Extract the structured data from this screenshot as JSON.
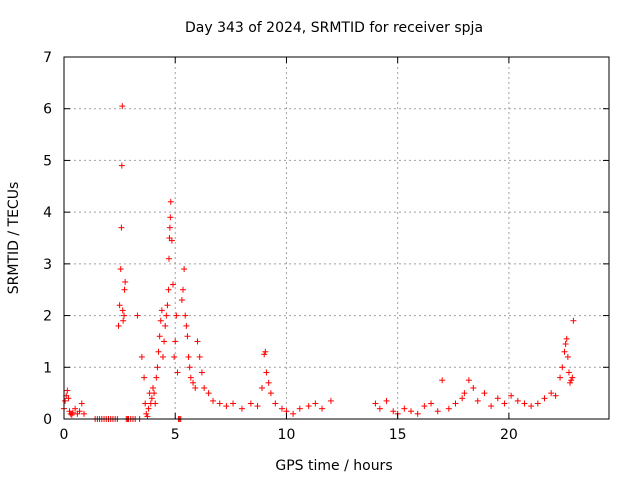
{
  "chart_data": {
    "type": "scatter",
    "title": "Day 343 of 2024, SRMTID for receiver spja",
    "xlabel": "GPS time / hours",
    "ylabel": "SRMTID / TECUs",
    "xlim": [
      0,
      24.5
    ],
    "ylim": [
      0,
      7
    ],
    "xticks": [
      0,
      5,
      10,
      15,
      20
    ],
    "yticks": [
      0,
      1,
      2,
      3,
      4,
      5,
      6,
      7
    ],
    "grid": true,
    "marker": "plus",
    "marker_color": "#ff0000",
    "series": [
      {
        "name": "SRMTID",
        "x": [
          0.0,
          0.05,
          0.1,
          0.15,
          0.2,
          0.25,
          0.3,
          0.35,
          0.4,
          0.5,
          0.6,
          0.7,
          0.8,
          0.9,
          1.4,
          1.5,
          1.6,
          1.7,
          1.8,
          1.9,
          2.0,
          2.1,
          2.2,
          2.3,
          2.4,
          2.45,
          2.5,
          2.55,
          2.58,
          2.6,
          2.62,
          2.64,
          2.66,
          2.7,
          2.72,
          2.75,
          2.8,
          2.85,
          2.9,
          3.0,
          3.1,
          3.2,
          3.3,
          3.4,
          3.5,
          3.6,
          3.65,
          3.7,
          3.75,
          3.8,
          3.85,
          3.9,
          3.95,
          4.0,
          4.05,
          4.1,
          4.15,
          4.2,
          4.25,
          4.3,
          4.35,
          4.4,
          4.45,
          4.5,
          4.55,
          4.6,
          4.65,
          4.7,
          4.72,
          4.74,
          4.76,
          4.78,
          4.8,
          4.85,
          4.9,
          4.95,
          5.0,
          5.05,
          5.1,
          5.15,
          5.2,
          5.25,
          5.3,
          5.35,
          5.4,
          5.45,
          5.5,
          5.55,
          5.6,
          5.65,
          5.7,
          5.8,
          5.9,
          6.0,
          6.1,
          6.2,
          6.3,
          6.5,
          6.7,
          7.0,
          7.3,
          7.6,
          8.0,
          8.4,
          8.7,
          8.9,
          9.0,
          9.05,
          9.1,
          9.2,
          9.3,
          9.5,
          9.8,
          10.0,
          10.3,
          10.6,
          11.0,
          11.3,
          11.6,
          12.0,
          14.0,
          14.2,
          14.5,
          14.8,
          15.0,
          15.3,
          15.6,
          15.9,
          16.2,
          16.5,
          16.8,
          17.0,
          17.3,
          17.6,
          17.9,
          18.0,
          18.2,
          18.4,
          18.6,
          18.9,
          19.2,
          19.5,
          19.8,
          20.1,
          20.4,
          20.7,
          21.0,
          21.3,
          21.6,
          21.9,
          22.1,
          22.3,
          22.4,
          22.5,
          22.55,
          22.6,
          22.65,
          22.7,
          22.75,
          22.8,
          22.85,
          22.9
        ],
        "y": [
          0.2,
          0.35,
          0.45,
          0.55,
          0.4,
          0.15,
          0.1,
          0.08,
          0.12,
          0.2,
          0.1,
          0.15,
          0.3,
          0.1,
          0.0,
          0.0,
          0.0,
          0.0,
          0.0,
          0.0,
          0.0,
          0.0,
          0.0,
          0.0,
          0.0,
          1.8,
          2.2,
          2.9,
          3.7,
          4.9,
          6.05,
          2.1,
          1.9,
          2.0,
          2.5,
          2.65,
          0.0,
          0.0,
          0.0,
          0.0,
          0.0,
          0.0,
          2.0,
          0.0,
          1.2,
          0.8,
          0.3,
          0.1,
          0.05,
          0.2,
          0.5,
          0.3,
          0.4,
          0.6,
          0.5,
          0.3,
          0.8,
          1.0,
          1.3,
          1.6,
          1.9,
          2.1,
          1.2,
          1.5,
          1.8,
          2.0,
          2.2,
          2.5,
          3.1,
          3.5,
          3.7,
          3.9,
          4.2,
          3.45,
          2.6,
          1.2,
          1.5,
          2.0,
          0.9,
          0.0,
          0.0,
          0.0,
          2.3,
          2.5,
          2.9,
          2.0,
          1.8,
          1.6,
          1.2,
          1.0,
          0.8,
          0.7,
          0.6,
          1.5,
          1.2,
          0.9,
          0.6,
          0.5,
          0.35,
          0.3,
          0.25,
          0.3,
          0.2,
          0.3,
          0.25,
          0.6,
          1.25,
          1.3,
          0.9,
          0.7,
          0.5,
          0.3,
          0.2,
          0.15,
          0.1,
          0.2,
          0.25,
          0.3,
          0.2,
          0.35,
          0.3,
          0.2,
          0.35,
          0.15,
          0.1,
          0.2,
          0.15,
          0.1,
          0.25,
          0.3,
          0.15,
          0.75,
          0.2,
          0.3,
          0.4,
          0.5,
          0.75,
          0.6,
          0.35,
          0.5,
          0.25,
          0.4,
          0.3,
          0.45,
          0.35,
          0.3,
          0.25,
          0.3,
          0.4,
          0.5,
          0.45,
          0.8,
          1.0,
          1.3,
          1.45,
          1.55,
          1.2,
          0.9,
          0.7,
          0.75,
          0.8,
          1.9
        ]
      }
    ]
  }
}
